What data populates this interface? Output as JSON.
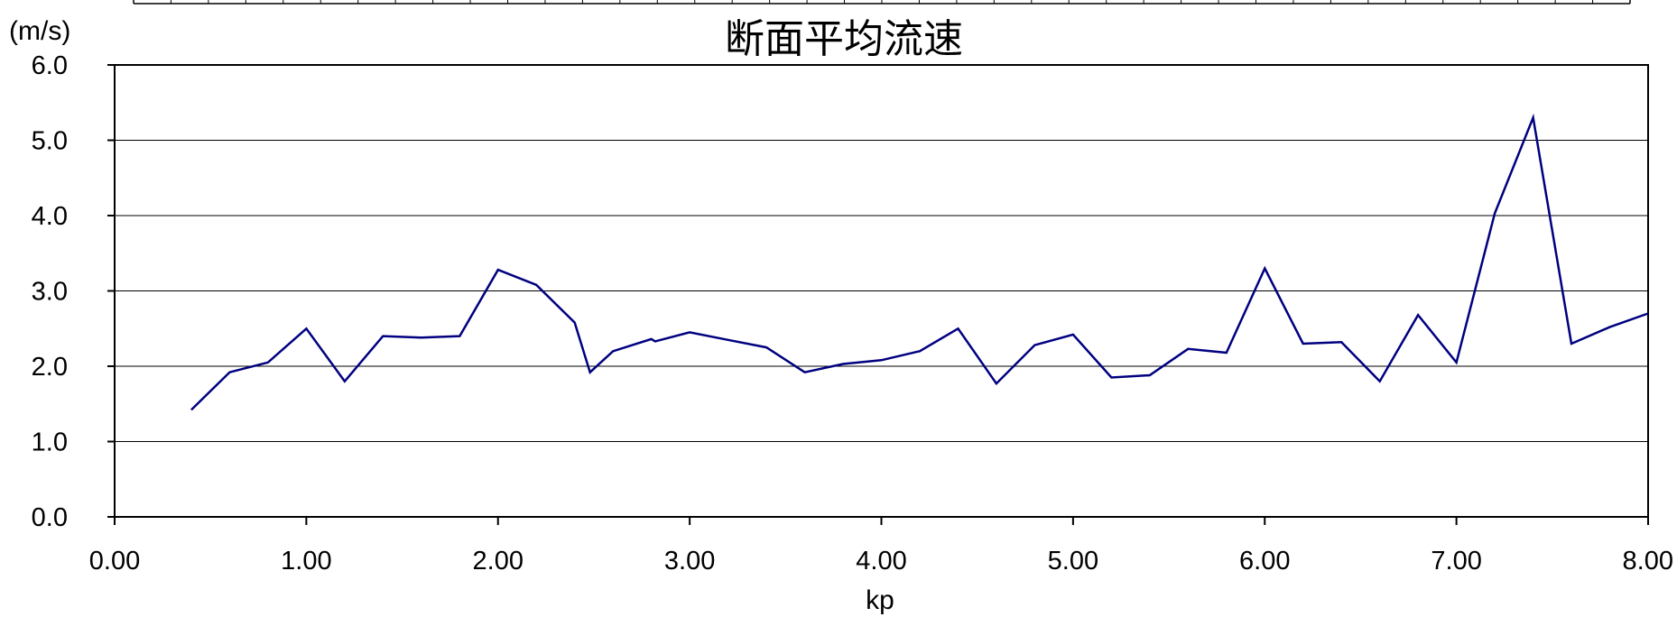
{
  "chart_data": {
    "type": "line",
    "title": "断面平均流速",
    "xlabel": "kp",
    "ylabel": "(m/s)",
    "xlim": [
      0,
      8
    ],
    "ylim": [
      0,
      6
    ],
    "x_ticks": [
      "0.00",
      "1.00",
      "2.00",
      "3.00",
      "4.00",
      "5.00",
      "6.00",
      "7.00",
      "8.00"
    ],
    "y_ticks": [
      "0.0",
      "1.0",
      "2.0",
      "3.0",
      "4.0",
      "5.0",
      "6.0"
    ],
    "grid": "horizontal",
    "series_color": "#000080",
    "series": [
      {
        "x": [
          0.4,
          0.6,
          0.8,
          1.0,
          1.2,
          1.4,
          1.6,
          1.8,
          2.0,
          2.2,
          2.4,
          2.48,
          2.6,
          2.8,
          2.82,
          3.0,
          3.2,
          3.4,
          3.6,
          3.8,
          4.0,
          4.2,
          4.4,
          4.6,
          4.8,
          5.0,
          5.2,
          5.4,
          5.6,
          5.8,
          6.0,
          6.2,
          6.4,
          6.6,
          6.8,
          7.0,
          7.2,
          7.4,
          7.6,
          7.8,
          8.0
        ],
        "values": [
          1.42,
          1.92,
          2.05,
          2.5,
          1.8,
          2.4,
          2.38,
          2.4,
          3.28,
          3.08,
          2.58,
          1.92,
          2.2,
          2.36,
          2.33,
          2.45,
          2.35,
          2.25,
          1.92,
          2.03,
          2.08,
          2.2,
          2.5,
          1.77,
          2.28,
          2.42,
          1.85,
          1.88,
          2.23,
          2.18,
          3.3,
          2.3,
          2.32,
          1.8,
          2.68,
          2.05,
          4.03,
          5.3,
          2.3,
          2.52,
          2.7
        ]
      }
    ]
  }
}
